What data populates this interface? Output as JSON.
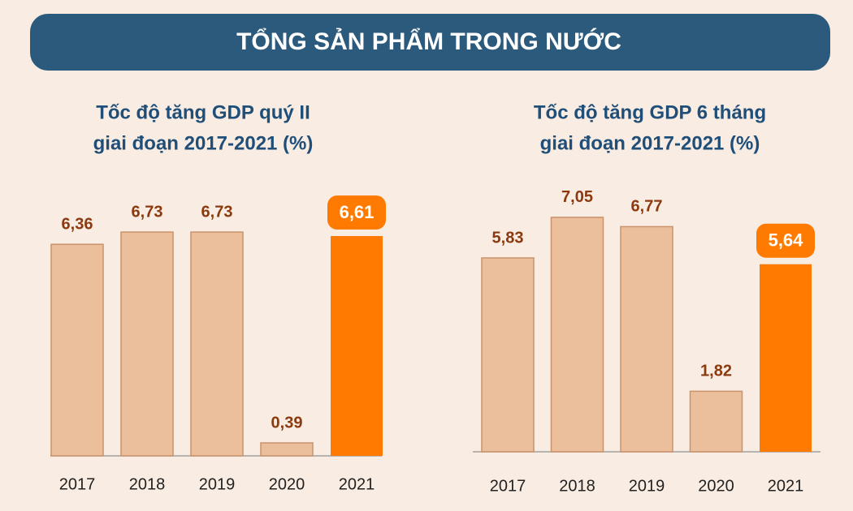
{
  "header": {
    "title": "TỔNG SẢN PHẨM TRONG NƯỚC"
  },
  "chart_data": [
    {
      "type": "bar",
      "title": [
        "Tốc độ tăng GDP quý II",
        "giai đoạn 2017-2021 (%)"
      ],
      "categories": [
        "2017",
        "2018",
        "2019",
        "2020",
        "2021"
      ],
      "values": [
        6.36,
        6.73,
        6.73,
        0.39,
        6.61
      ],
      "value_labels": [
        "6,36",
        "6,73",
        "6,73",
        "0,39",
        "6,61"
      ],
      "colors": [
        "#ebbf9c",
        "#ebbf9c",
        "#ebbf9c",
        "#ebbf9c",
        "#ff7a00"
      ],
      "highlight_color": "#ff7a00"
    },
    {
      "type": "bar",
      "title": [
        "Tốc độ tăng GDP 6 tháng",
        "giai đoạn 2017-2021 (%)"
      ],
      "categories": [
        "2017",
        "2018",
        "2019",
        "2020",
        "2021"
      ],
      "values": [
        5.83,
        7.05,
        6.77,
        1.82,
        5.64
      ],
      "value_labels": [
        "5,83",
        "7,05",
        "6,77",
        "1,82",
        "5,64"
      ],
      "colors": [
        "#ebbf9c",
        "#ebbf9c",
        "#ebbf9c",
        "#ebbf9c",
        "#ff7a00"
      ],
      "highlight_color": "#ff7a00"
    }
  ]
}
